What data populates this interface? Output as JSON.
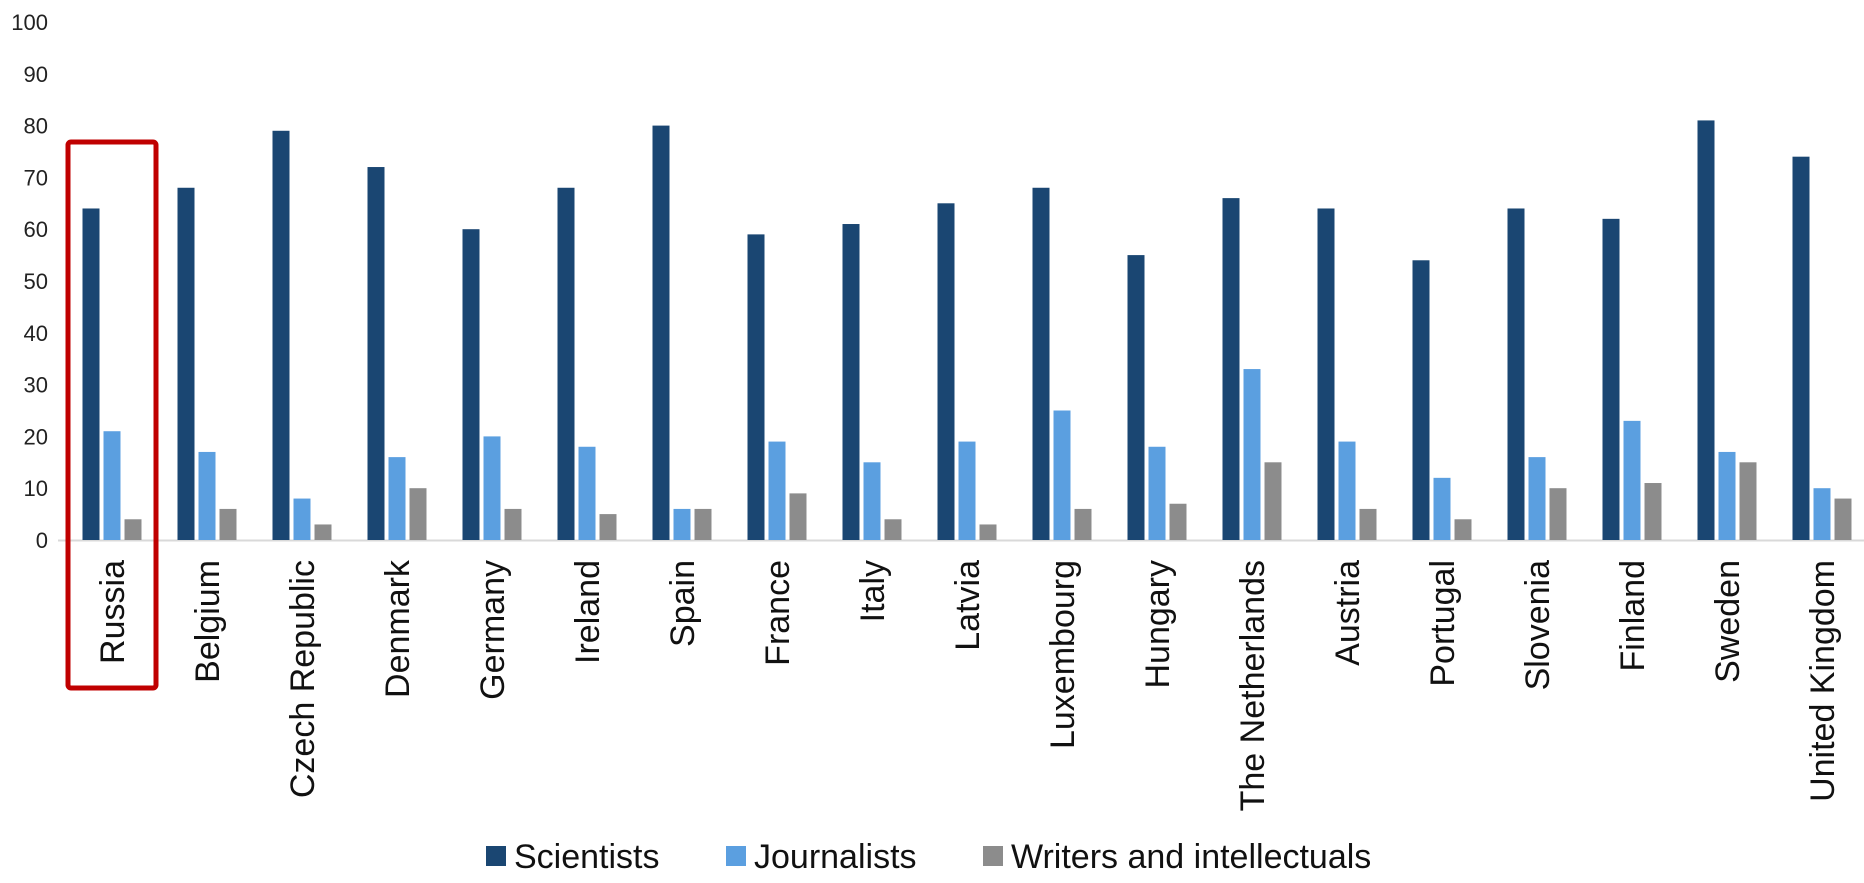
{
  "chart_data": {
    "type": "bar",
    "title": "",
    "xlabel": "",
    "ylabel": "",
    "ylim": [
      0,
      100
    ],
    "yticks": [
      0,
      10,
      20,
      30,
      40,
      50,
      60,
      70,
      80,
      90,
      100
    ],
    "categories": [
      "Russia",
      "Belgium",
      "Czech Republic",
      "Denmark",
      "Germany",
      "Ireland",
      "Spain",
      "France",
      "Italy",
      "Latvia",
      "Luxembourg",
      "Hungary",
      "The Netherlands",
      "Austria",
      "Portugal",
      "Slovenia",
      "Finland",
      "Sweden",
      "United Kingdom"
    ],
    "series": [
      {
        "name": "Scientists",
        "color": "#1a4672",
        "values": [
          64,
          68,
          79,
          72,
          60,
          68,
          80,
          59,
          61,
          65,
          68,
          55,
          66,
          64,
          54,
          64,
          62,
          81,
          74
        ]
      },
      {
        "name": "Journalists",
        "color": "#5b9fe0",
        "values": [
          21,
          17,
          8,
          16,
          20,
          18,
          6,
          19,
          15,
          19,
          25,
          18,
          33,
          19,
          12,
          16,
          23,
          17,
          10
        ]
      },
      {
        "name": "Writers and intellectuals",
        "color": "#8c8c8c",
        "values": [
          4,
          6,
          3,
          10,
          6,
          5,
          6,
          9,
          4,
          3,
          6,
          7,
          15,
          6,
          4,
          10,
          11,
          15,
          8
        ]
      }
    ],
    "grid": false,
    "legend_position": "bottom",
    "highlighted_category": "Russia",
    "highlight_color": "#c00000"
  }
}
